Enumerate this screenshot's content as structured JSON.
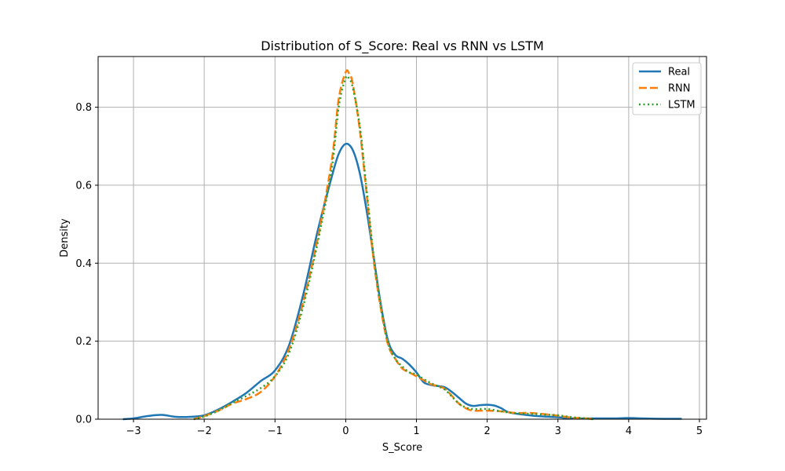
{
  "chart_data": {
    "type": "line",
    "title": "Distribution of S_Score: Real vs RNN vs LSTM",
    "xlabel": "S_Score",
    "ylabel": "Density",
    "xlim": [
      -3.5,
      5.1
    ],
    "ylim": [
      0,
      0.93
    ],
    "xticks": [
      -3,
      -2,
      -1,
      0,
      1,
      2,
      3,
      4,
      5
    ],
    "yticks": [
      0.0,
      0.2,
      0.4,
      0.6,
      0.8
    ],
    "xtick_labels": [
      "−3",
      "−2",
      "−1",
      "0",
      "1",
      "2",
      "3",
      "4",
      "5"
    ],
    "ytick_labels": [
      "0.0",
      "0.2",
      "0.4",
      "0.6",
      "0.8"
    ],
    "grid": true,
    "legend_position": "top-right",
    "series": [
      {
        "name": "Real",
        "color": "#1f77b4",
        "style": "solid",
        "points": [
          [
            -3.15,
            0.0
          ],
          [
            -3.0,
            0.002
          ],
          [
            -2.8,
            0.008
          ],
          [
            -2.6,
            0.011
          ],
          [
            -2.4,
            0.006
          ],
          [
            -2.2,
            0.006
          ],
          [
            -2.0,
            0.01
          ],
          [
            -1.8,
            0.025
          ],
          [
            -1.6,
            0.045
          ],
          [
            -1.4,
            0.068
          ],
          [
            -1.2,
            0.098
          ],
          [
            -1.0,
            0.125
          ],
          [
            -0.8,
            0.19
          ],
          [
            -0.6,
            0.32
          ],
          [
            -0.4,
            0.48
          ],
          [
            -0.2,
            0.62
          ],
          [
            -0.1,
            0.68
          ],
          [
            0.0,
            0.706
          ],
          [
            0.1,
            0.69
          ],
          [
            0.2,
            0.63
          ],
          [
            0.3,
            0.53
          ],
          [
            0.4,
            0.41
          ],
          [
            0.5,
            0.29
          ],
          [
            0.6,
            0.2
          ],
          [
            0.7,
            0.165
          ],
          [
            0.8,
            0.155
          ],
          [
            0.9,
            0.14
          ],
          [
            1.0,
            0.12
          ],
          [
            1.1,
            0.095
          ],
          [
            1.2,
            0.088
          ],
          [
            1.3,
            0.085
          ],
          [
            1.4,
            0.082
          ],
          [
            1.5,
            0.07
          ],
          [
            1.6,
            0.055
          ],
          [
            1.7,
            0.04
          ],
          [
            1.8,
            0.034
          ],
          [
            1.9,
            0.036
          ],
          [
            2.0,
            0.037
          ],
          [
            2.1,
            0.035
          ],
          [
            2.2,
            0.028
          ],
          [
            2.3,
            0.018
          ],
          [
            2.5,
            0.012
          ],
          [
            2.7,
            0.008
          ],
          [
            3.0,
            0.005
          ],
          [
            3.2,
            0.002
          ],
          [
            3.5,
            0.002
          ],
          [
            3.8,
            0.002
          ],
          [
            4.0,
            0.003
          ],
          [
            4.2,
            0.002
          ],
          [
            4.5,
            0.001
          ],
          [
            4.75,
            0.001
          ]
        ]
      },
      {
        "name": "RNN",
        "color": "#ff7f0e",
        "style": "dashed",
        "points": [
          [
            -2.15,
            0.0
          ],
          [
            -2.0,
            0.008
          ],
          [
            -1.8,
            0.022
          ],
          [
            -1.6,
            0.04
          ],
          [
            -1.4,
            0.052
          ],
          [
            -1.2,
            0.07
          ],
          [
            -1.0,
            0.11
          ],
          [
            -0.8,
            0.18
          ],
          [
            -0.6,
            0.3
          ],
          [
            -0.4,
            0.46
          ],
          [
            -0.2,
            0.66
          ],
          [
            -0.1,
            0.82
          ],
          [
            0.0,
            0.89
          ],
          [
            0.05,
            0.885
          ],
          [
            0.1,
            0.86
          ],
          [
            0.2,
            0.74
          ],
          [
            0.3,
            0.57
          ],
          [
            0.4,
            0.4
          ],
          [
            0.5,
            0.28
          ],
          [
            0.6,
            0.19
          ],
          [
            0.7,
            0.155
          ],
          [
            0.8,
            0.13
          ],
          [
            0.9,
            0.12
          ],
          [
            1.0,
            0.11
          ],
          [
            1.1,
            0.1
          ],
          [
            1.2,
            0.09
          ],
          [
            1.3,
            0.085
          ],
          [
            1.4,
            0.078
          ],
          [
            1.5,
            0.06
          ],
          [
            1.6,
            0.04
          ],
          [
            1.7,
            0.028
          ],
          [
            1.8,
            0.022
          ],
          [
            2.0,
            0.022
          ],
          [
            2.2,
            0.02
          ],
          [
            2.4,
            0.016
          ],
          [
            2.6,
            0.016
          ],
          [
            2.8,
            0.013
          ],
          [
            3.0,
            0.009
          ],
          [
            3.2,
            0.004
          ],
          [
            3.4,
            0.002
          ],
          [
            3.5,
            0.0
          ]
        ]
      },
      {
        "name": "LSTM",
        "color": "#2ca02c",
        "style": "dotted",
        "points": [
          [
            -2.15,
            0.0
          ],
          [
            -2.0,
            0.007
          ],
          [
            -1.8,
            0.022
          ],
          [
            -1.6,
            0.042
          ],
          [
            -1.4,
            0.06
          ],
          [
            -1.2,
            0.08
          ],
          [
            -1.0,
            0.11
          ],
          [
            -0.8,
            0.17
          ],
          [
            -0.6,
            0.29
          ],
          [
            -0.4,
            0.45
          ],
          [
            -0.2,
            0.64
          ],
          [
            -0.1,
            0.8
          ],
          [
            0.0,
            0.875
          ],
          [
            0.05,
            0.872
          ],
          [
            0.1,
            0.85
          ],
          [
            0.2,
            0.75
          ],
          [
            0.3,
            0.58
          ],
          [
            0.4,
            0.41
          ],
          [
            0.5,
            0.285
          ],
          [
            0.6,
            0.195
          ],
          [
            0.7,
            0.155
          ],
          [
            0.8,
            0.135
          ],
          [
            0.9,
            0.12
          ],
          [
            1.0,
            0.115
          ],
          [
            1.1,
            0.103
          ],
          [
            1.2,
            0.093
          ],
          [
            1.3,
            0.085
          ],
          [
            1.4,
            0.076
          ],
          [
            1.5,
            0.058
          ],
          [
            1.6,
            0.04
          ],
          [
            1.7,
            0.03
          ],
          [
            1.8,
            0.026
          ],
          [
            2.0,
            0.026
          ],
          [
            2.2,
            0.02
          ],
          [
            2.4,
            0.015
          ],
          [
            2.6,
            0.014
          ],
          [
            2.8,
            0.012
          ],
          [
            3.0,
            0.01
          ],
          [
            3.2,
            0.005
          ],
          [
            3.4,
            0.002
          ],
          [
            3.5,
            0.0
          ]
        ]
      }
    ]
  }
}
